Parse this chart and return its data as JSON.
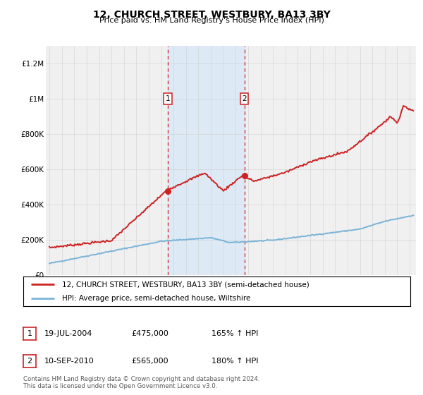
{
  "title": "12, CHURCH STREET, WESTBURY, BA13 3BY",
  "subtitle": "Price paid vs. HM Land Registry's House Price Index (HPI)",
  "ylim": [
    0,
    1300000
  ],
  "xlim_start": 1994.7,
  "xlim_end": 2024.5,
  "hpi_color": "#7ab3d8",
  "price_color": "#cc2222",
  "sale1_year": 2004.54,
  "sale1_price": 475000,
  "sale1_date": "19-JUL-2004",
  "sale1_hpi_pct": "165%",
  "sale2_year": 2010.69,
  "sale2_price": 565000,
  "sale2_date": "10-SEP-2010",
  "sale2_hpi_pct": "180%",
  "legend_line1": "12, CHURCH STREET, WESTBURY, BA13 3BY (semi-detached house)",
  "legend_line2": "HPI: Average price, semi-detached house, Wiltshire",
  "footnote1": "Contains HM Land Registry data © Crown copyright and database right 2024.",
  "footnote2": "This data is licensed under the Open Government Licence v3.0.",
  "yticks": [
    0,
    200000,
    400000,
    600000,
    800000,
    1000000,
    1200000
  ],
  "ytick_labels": [
    "£0",
    "£200K",
    "£400K",
    "£600K",
    "£800K",
    "£1M",
    "£1.2M"
  ],
  "xticks": [
    1995,
    1996,
    1997,
    1998,
    1999,
    2000,
    2001,
    2002,
    2003,
    2004,
    2005,
    2006,
    2007,
    2008,
    2009,
    2010,
    2011,
    2012,
    2013,
    2014,
    2015,
    2016,
    2017,
    2018,
    2019,
    2020,
    2021,
    2022,
    2023,
    2024
  ],
  "shade_color": "#ddeaf5",
  "grid_color": "#cccccc",
  "bg_color": "#f0f0f0"
}
